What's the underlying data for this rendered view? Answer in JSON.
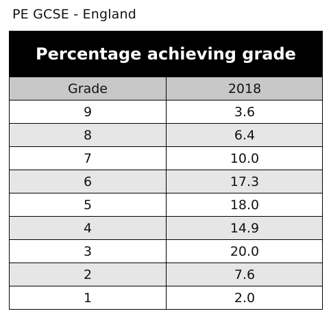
{
  "caption": "PE GCSE - England",
  "chart_data": {
    "type": "table",
    "title": "Percentage achieving grade",
    "columns": [
      "Grade",
      "2018"
    ],
    "rows": [
      [
        "9",
        "3.6"
      ],
      [
        "8",
        "6.4"
      ],
      [
        "7",
        "10.0"
      ],
      [
        "6",
        "17.3"
      ],
      [
        "5",
        "18.0"
      ],
      [
        "4",
        "14.9"
      ],
      [
        "3",
        "20.0"
      ],
      [
        "2",
        "7.6"
      ],
      [
        "1",
        "2.0"
      ]
    ]
  }
}
